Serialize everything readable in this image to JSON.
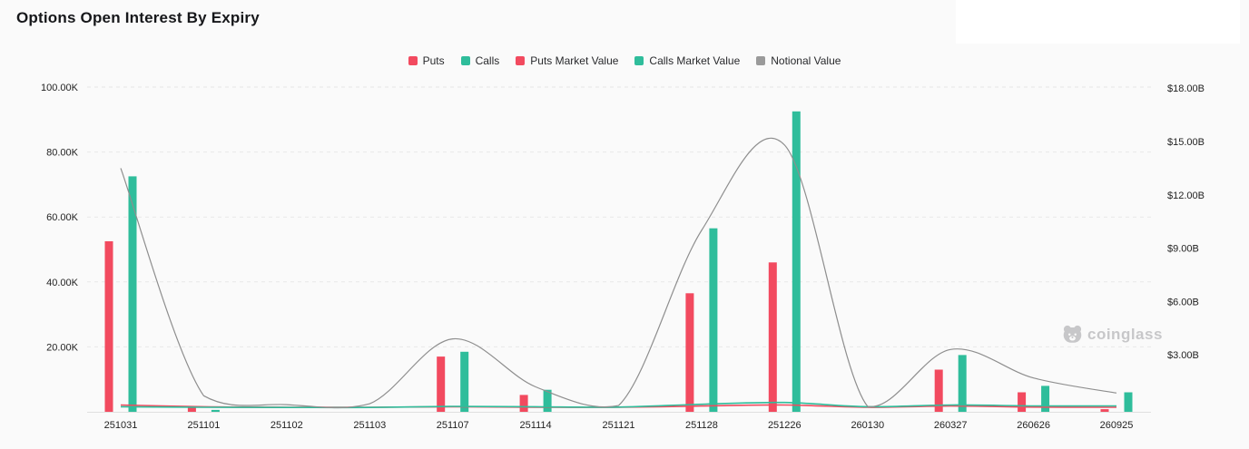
{
  "header": {
    "title": "Options Open Interest By Expiry"
  },
  "watermark": {
    "label": "coinglass"
  },
  "colors": {
    "puts": "#f24a5f",
    "calls": "#2fbd9b",
    "notional": "#8e8e8e",
    "legend_gray": "#9a9a9a",
    "grid": "#e7e7e7",
    "axis_line": "#e0e0e0",
    "axis_text": "#222222",
    "background": "#fafafa"
  },
  "legend": {
    "items": [
      {
        "label": "Puts",
        "color": "#f24a5f"
      },
      {
        "label": "Calls",
        "color": "#2fbd9b"
      },
      {
        "label": "Puts Market Value",
        "color": "#f24a5f"
      },
      {
        "label": "Calls Market Value",
        "color": "#2fbd9b"
      },
      {
        "label": "Notional Value",
        "color": "#9a9a9a"
      }
    ]
  },
  "chart_data": {
    "type": "bar",
    "title": "Options Open Interest By Expiry",
    "categories": [
      "251031",
      "251101",
      "251102",
      "251103",
      "251107",
      "251114",
      "251121",
      "251128",
      "251226",
      "260130",
      "260327",
      "260626",
      "260925"
    ],
    "series": [
      {
        "name": "Puts",
        "type": "bar",
        "axis": "left",
        "unit": "K",
        "color": "#f24a5f",
        "values": [
          52.5,
          1.8,
          0,
          0,
          17.0,
          5.2,
          0,
          36.5,
          46.0,
          0,
          13.0,
          6.0,
          0.8
        ]
      },
      {
        "name": "Calls",
        "type": "bar",
        "axis": "left",
        "unit": "K",
        "color": "#2fbd9b",
        "values": [
          72.5,
          0.6,
          0,
          0,
          18.5,
          6.8,
          0,
          56.5,
          92.5,
          0,
          17.5,
          8.0,
          6.0
        ]
      },
      {
        "name": "Puts Market Value",
        "type": "line",
        "axis": "right",
        "unit": "$B",
        "color": "#f24a5f",
        "values": [
          0.18,
          0.08,
          0.05,
          0.05,
          0.08,
          0.05,
          0.05,
          0.12,
          0.18,
          0.05,
          0.12,
          0.06,
          0.05
        ]
      },
      {
        "name": "Calls Market Value",
        "type": "line",
        "axis": "right",
        "unit": "$B",
        "color": "#2fbd9b",
        "values": [
          0.08,
          0.05,
          0.04,
          0.04,
          0.1,
          0.08,
          0.06,
          0.22,
          0.32,
          0.08,
          0.18,
          0.13,
          0.13
        ]
      },
      {
        "name": "Notional Value",
        "type": "line",
        "axis": "right",
        "unit": "$B",
        "color": "#8e8e8e",
        "values": [
          13.5,
          0.7,
          0.2,
          0.25,
          3.9,
          1.2,
          0.15,
          10.0,
          14.8,
          0.1,
          3.3,
          1.7,
          0.85
        ]
      }
    ],
    "left_axis": {
      "unit": "K",
      "max": 100,
      "tick_step": 20,
      "ticks": [
        "20.00K",
        "40.00K",
        "60.00K",
        "80.00K",
        "100.00K"
      ]
    },
    "right_axis": {
      "unit": "$B",
      "max": 18,
      "tick_step": 3,
      "ticks": [
        "$3.00B",
        "$6.00B",
        "$9.00B",
        "$12.00B",
        "$15.00B",
        "$18.00B"
      ]
    },
    "grid": "horizontal dashed lines, left-axis ticks only",
    "legend_position": "top-center"
  }
}
